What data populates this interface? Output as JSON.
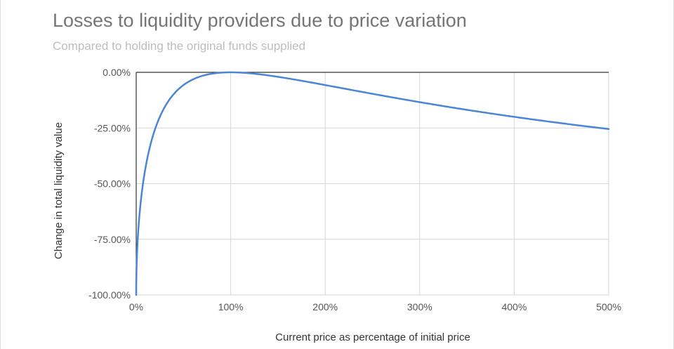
{
  "chart_data": {
    "type": "line",
    "title": "Losses to liquidity providers due to price variation",
    "subtitle": "Compared to holding the original funds supplied",
    "xlabel": "Current price as percentage of initial price",
    "ylabel": "Change in total liquidity value",
    "xlim": [
      0,
      500
    ],
    "ylim": [
      -100,
      0
    ],
    "x_ticks": [
      0,
      100,
      200,
      300,
      400,
      500
    ],
    "x_tick_labels": [
      "0%",
      "100%",
      "200%",
      "300%",
      "400%",
      "500%"
    ],
    "y_ticks": [
      0,
      -25,
      -50,
      -75,
      -100
    ],
    "y_tick_labels": [
      "0.00%",
      "-25.00%",
      "-50.00%",
      "-75.00%",
      "-100.00%"
    ],
    "grid": true,
    "legend": "none",
    "series": [
      {
        "name": "Change in total liquidity value",
        "color": "#4a86d6",
        "x": [
          0,
          0.5,
          1,
          2,
          3,
          5,
          7.5,
          10,
          12.5,
          15,
          20,
          25,
          30,
          35,
          40,
          50,
          60,
          70,
          80,
          90,
          100,
          110,
          125,
          150,
          175,
          200,
          225,
          250,
          300,
          350,
          400,
          450,
          500
        ],
        "y": [
          -100,
          -85.92,
          -80.2,
          -72.27,
          -66.37,
          -57.4,
          -49.05,
          -42.51,
          -37.15,
          -32.65,
          -25.46,
          -20.0,
          -15.73,
          -12.35,
          -9.65,
          -5.72,
          -3.18,
          -1.57,
          -0.62,
          -0.14,
          0.0,
          -0.11,
          -0.62,
          -2.02,
          -3.79,
          -5.72,
          -7.69,
          -9.65,
          -13.4,
          -16.87,
          -20.0,
          -22.86,
          -25.46
        ]
      }
    ]
  }
}
